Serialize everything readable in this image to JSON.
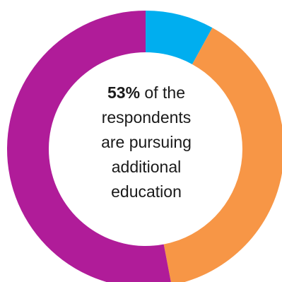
{
  "chart_data": {
    "type": "pie",
    "variant": "donut",
    "start_angle_deg": 0,
    "direction": "clockwise",
    "slices": [
      {
        "value": 8,
        "color": "#00AEEF"
      },
      {
        "value": 39,
        "color": "#F79646"
      },
      {
        "value": 53,
        "color": "#B01C99"
      }
    ],
    "annotation": {
      "highlight": "53%",
      "text_lines": [
        " of the",
        "respondents",
        "are pursuing",
        "additional",
        "education"
      ]
    }
  }
}
